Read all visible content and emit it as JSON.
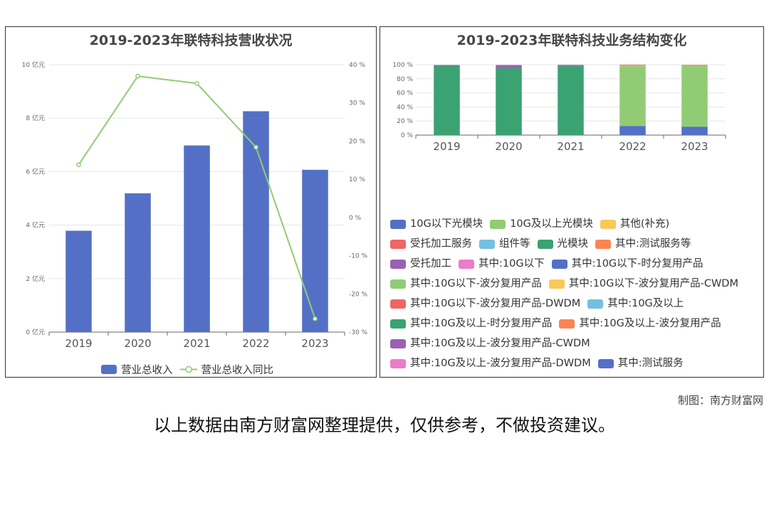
{
  "footer": {
    "credit": "制图：南方财富网",
    "disclaimer": "以上数据由南方财富网整理提供，仅供参考，不做投资建议。"
  },
  "chart_data": [
    {
      "type": "bar",
      "title": "2019-2023年联特科技营收状况",
      "categories": [
        "2019",
        "2020",
        "2021",
        "2022",
        "2023"
      ],
      "ylim": [
        0,
        10
      ],
      "y_ticks": [
        "0 亿元",
        "2 亿元",
        "4 亿元",
        "6 亿元",
        "8 亿元",
        "10 亿元"
      ],
      "y2lim": [
        -30,
        40
      ],
      "y2_ticks": [
        "-30 %",
        "-20 %",
        "-10 %",
        "0 %",
        "10 %",
        "20 %",
        "30 %",
        "40 %"
      ],
      "legend_position": "bottom",
      "series": [
        {
          "name": "营业总收入",
          "type": "bar",
          "color": "#5470c6",
          "values": [
            3.79,
            5.19,
            6.98,
            8.26,
            6.07
          ]
        },
        {
          "name": "营业总收入同比",
          "type": "line",
          "axis": "right",
          "color": "#91cc75",
          "values": [
            13.8,
            37.0,
            35.1,
            18.4,
            -26.5
          ]
        }
      ]
    },
    {
      "type": "bar",
      "stacked": true,
      "percent": true,
      "title": "2019-2023年联特科技业务结构变化",
      "categories": [
        "2019",
        "2020",
        "2021",
        "2022",
        "2023"
      ],
      "ylim": [
        0,
        100
      ],
      "y_ticks": [
        "0 %",
        "20 %",
        "40 %",
        "60 %",
        "80 %",
        "100 %"
      ],
      "legend_position": "bottom",
      "series": [
        {
          "name": "10G以下光模块",
          "color": "#5470c6",
          "values": [
            0,
            0,
            0,
            13,
            12
          ]
        },
        {
          "name": "10G及以上光模块",
          "color": "#91cc75",
          "values": [
            0,
            0,
            0,
            85,
            87
          ]
        },
        {
          "name": "其他(补充)",
          "color": "#fac858",
          "values": [
            0,
            0,
            0,
            1,
            0.5
          ]
        },
        {
          "name": "受托加工服务",
          "color": "#ee6666",
          "values": [
            0,
            0,
            0,
            1,
            0.5
          ]
        },
        {
          "name": "组件等",
          "color": "#73c0de",
          "values": [
            0,
            0,
            0,
            0,
            0
          ]
        },
        {
          "name": "光模块",
          "color": "#3ba272",
          "values": [
            98.5,
            95,
            98.3,
            0,
            0
          ]
        },
        {
          "name": "其中:测试服务等",
          "color": "#fc8452",
          "values": [
            0,
            0,
            0,
            0,
            0
          ]
        },
        {
          "name": "受托加工",
          "color": "#9a60b4",
          "values": [
            1,
            4.5,
            1.5,
            0,
            0
          ]
        },
        {
          "name": "其中:10G以下",
          "color": "#ea7ccc",
          "values": [
            0,
            0,
            0,
            0,
            0
          ]
        },
        {
          "name": "其中:10G以下-时分复用产品",
          "color": "#5470c6",
          "values": [
            0,
            0,
            0,
            0,
            0
          ]
        },
        {
          "name": "其中:10G以下-波分复用产品",
          "color": "#91cc75",
          "values": [
            0,
            0,
            0,
            0,
            0
          ]
        },
        {
          "name": "其中:10G以下-波分复用产品-CWDM",
          "color": "#fac858",
          "values": [
            0,
            0,
            0,
            0,
            0
          ]
        },
        {
          "name": "其中:10G以下-波分复用产品-DWDM",
          "color": "#ee6666",
          "values": [
            0,
            0,
            0,
            0,
            0
          ]
        },
        {
          "name": "其中:10G及以上",
          "color": "#73c0de",
          "values": [
            0,
            0,
            0,
            0,
            0
          ]
        },
        {
          "name": "其中:10G及以上-时分复用产品",
          "color": "#3ba272",
          "values": [
            0,
            0,
            0,
            0,
            0
          ]
        },
        {
          "name": "其中:10G及以上-波分复用产品",
          "color": "#fc8452",
          "values": [
            0,
            0,
            0,
            0,
            0
          ]
        },
        {
          "name": "其中:10G及以上-波分复用产品-CWDM",
          "color": "#9a60b4",
          "values": [
            0,
            0,
            0,
            0,
            0
          ]
        },
        {
          "name": "其中:10G及以上-波分复用产品-DWDM",
          "color": "#ea7ccc",
          "values": [
            0,
            0,
            0,
            0,
            0
          ]
        },
        {
          "name": "其中:测试服务",
          "color": "#5470c6",
          "values": [
            0,
            0,
            0,
            0,
            0
          ]
        }
      ]
    }
  ]
}
